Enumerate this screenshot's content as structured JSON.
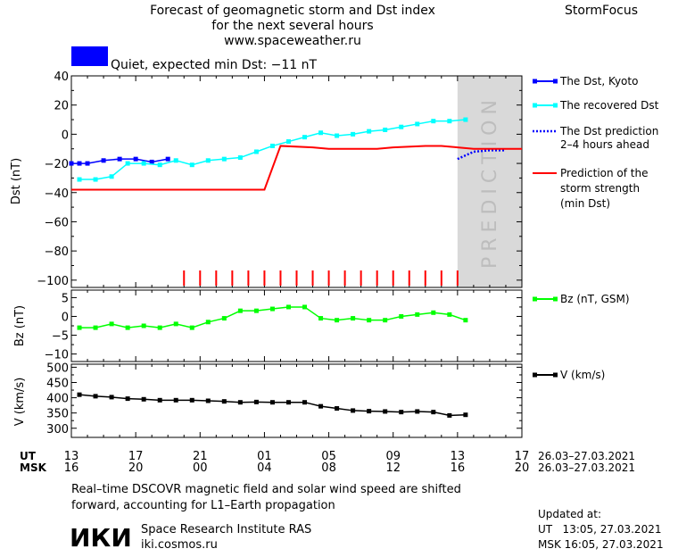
{
  "header": {
    "title_line1": "Forecast of geomagnetic storm and Dst index",
    "title_line2": "for the next several hours",
    "url": "www.spaceweather.ru",
    "brand": "StormFocus",
    "status_text": "Quiet, expected min Dst: −11 nT",
    "status_color": "#0000ff"
  },
  "prediction_label": "PREDICTION",
  "x_axis": {
    "ut_label": "UT",
    "msk_label": "MSK",
    "ut_ticks": [
      "13",
      "17",
      "21",
      "01",
      "05",
      "09",
      "13",
      "17"
    ],
    "msk_ticks": [
      "16",
      "20",
      "00",
      "04",
      "08",
      "12",
      "16",
      "20"
    ],
    "date_range_ut": "26.03–27.03.2021",
    "date_range_msk": "26.03–27.03.2021"
  },
  "footer": {
    "note_line1": "Real–time DSCOVR magnetic field and solar wind speed are shifted",
    "note_line2": "forward, accounting for L1–Earth propagation",
    "logo_text": "ИКИ",
    "institute": "Space Research Institute RAS",
    "site": "iki.cosmos.ru",
    "updated_label": "Updated at:",
    "updated_ut": "UT   13:05, 27.03.2021",
    "updated_msk": "MSK 16:05, 27.03.2021"
  },
  "chart_data": [
    {
      "type": "line",
      "ylabel": "Dst (nT)",
      "ylim": [
        -105,
        40
      ],
      "yticks": [
        40,
        20,
        0,
        -20,
        -40,
        -60,
        -80,
        -100
      ],
      "xlim": [
        0,
        28
      ],
      "prediction_region": [
        24,
        28
      ],
      "legend": [
        {
          "name": "The Dst, Kyoto",
          "color": "#0000ff"
        },
        {
          "name": "The recovered Dst",
          "color": "#00ffff"
        },
        {
          "name": "The Dst prediction 2–4 hours ahead",
          "color": "#0000ff"
        },
        {
          "name": "Prediction of the storm strength (min Dst)",
          "color": "#ff0000"
        }
      ],
      "series": [
        {
          "name": "The Dst, Kyoto",
          "color": "#0000ff",
          "x": [
            0,
            0.5,
            1,
            2,
            3,
            4,
            5,
            6
          ],
          "y": [
            -20,
            -20,
            -20,
            -18,
            -17,
            -17,
            -19,
            -17
          ]
        },
        {
          "name": "The recovered Dst",
          "color": "#00ffff",
          "x": [
            0.5,
            1.5,
            2.5,
            3.5,
            4.5,
            5.5,
            6.5,
            7.5,
            8.5,
            9.5,
            10.5,
            11.5,
            12.5,
            13.5,
            14.5,
            15.5,
            16.5,
            17.5,
            18.5,
            19.5,
            20.5,
            21.5,
            22.5,
            23.5,
            24.5
          ],
          "y": [
            -31,
            -31,
            -29,
            -20,
            -20,
            -21,
            -18,
            -21,
            -18,
            -17,
            -16,
            -12,
            -8,
            -5,
            -2,
            1,
            -1,
            0,
            2,
            3,
            5,
            7,
            9,
            9,
            10
          ]
        },
        {
          "name": "The Dst prediction 2–4 hours ahead",
          "color": "#0000ff",
          "dashed": true,
          "x": [
            24,
            25,
            26,
            27
          ],
          "y": [
            -17,
            -12,
            -11,
            -11
          ]
        },
        {
          "name": "Prediction of the storm strength (min Dst)",
          "color": "#ff0000",
          "x": [
            0,
            12,
            13,
            15,
            16,
            17,
            18,
            19,
            20,
            22,
            23,
            24,
            25,
            28
          ],
          "y": [
            -38,
            -38,
            -8,
            -9,
            -10,
            -10,
            -10,
            -10,
            -9,
            -8,
            -8,
            -9,
            -10,
            -10
          ]
        }
      ],
      "events": [
        7,
        8,
        9,
        10,
        11,
        12,
        13,
        14,
        15,
        16,
        17,
        18,
        19,
        20,
        21,
        22,
        23,
        24
      ]
    },
    {
      "type": "line",
      "ylabel": "Bz (nT)",
      "ylim": [
        -12,
        7
      ],
      "yticks": [
        5,
        0,
        -5,
        -10
      ],
      "xlim": [
        0,
        28
      ],
      "legend": [
        {
          "name": "Bz (nT, GSM)",
          "color": "#00ff00"
        }
      ],
      "series": [
        {
          "name": "Bz (nT, GSM)",
          "color": "#00ff00",
          "x": [
            0.5,
            1.5,
            2.5,
            3.5,
            4.5,
            5.5,
            6.5,
            7.5,
            8.5,
            9.5,
            10.5,
            11.5,
            12.5,
            13.5,
            14.5,
            15.5,
            16.5,
            17.5,
            18.5,
            19.5,
            20.5,
            21.5,
            22.5,
            23.5,
            24.5
          ],
          "y": [
            -3,
            -3,
            -2,
            -3,
            -2.5,
            -3,
            -2,
            -3,
            -1.5,
            -0.5,
            1.5,
            1.5,
            2,
            2.5,
            2.5,
            -0.5,
            -1,
            -0.5,
            -1,
            -1,
            0,
            0.5,
            1,
            0.5,
            -1
          ]
        }
      ]
    },
    {
      "type": "line",
      "ylabel": "V (km/s)",
      "ylim": [
        270,
        510
      ],
      "yticks": [
        500,
        450,
        400,
        350,
        300
      ],
      "xlim": [
        0,
        28
      ],
      "legend": [
        {
          "name": "V (km/s)",
          "color": "#000000"
        }
      ],
      "series": [
        {
          "name": "V (km/s)",
          "color": "#000000",
          "x": [
            0.5,
            1.5,
            2.5,
            3.5,
            4.5,
            5.5,
            6.5,
            7.5,
            8.5,
            9.5,
            10.5,
            11.5,
            12.5,
            13.5,
            14.5,
            15.5,
            16.5,
            17.5,
            18.5,
            19.5,
            20.5,
            21.5,
            22.5,
            23.5,
            24.5
          ],
          "y": [
            410,
            405,
            402,
            397,
            395,
            392,
            392,
            392,
            390,
            388,
            385,
            386,
            385,
            385,
            385,
            372,
            365,
            358,
            356,
            355,
            353,
            355,
            353,
            342,
            344
          ]
        }
      ]
    }
  ]
}
